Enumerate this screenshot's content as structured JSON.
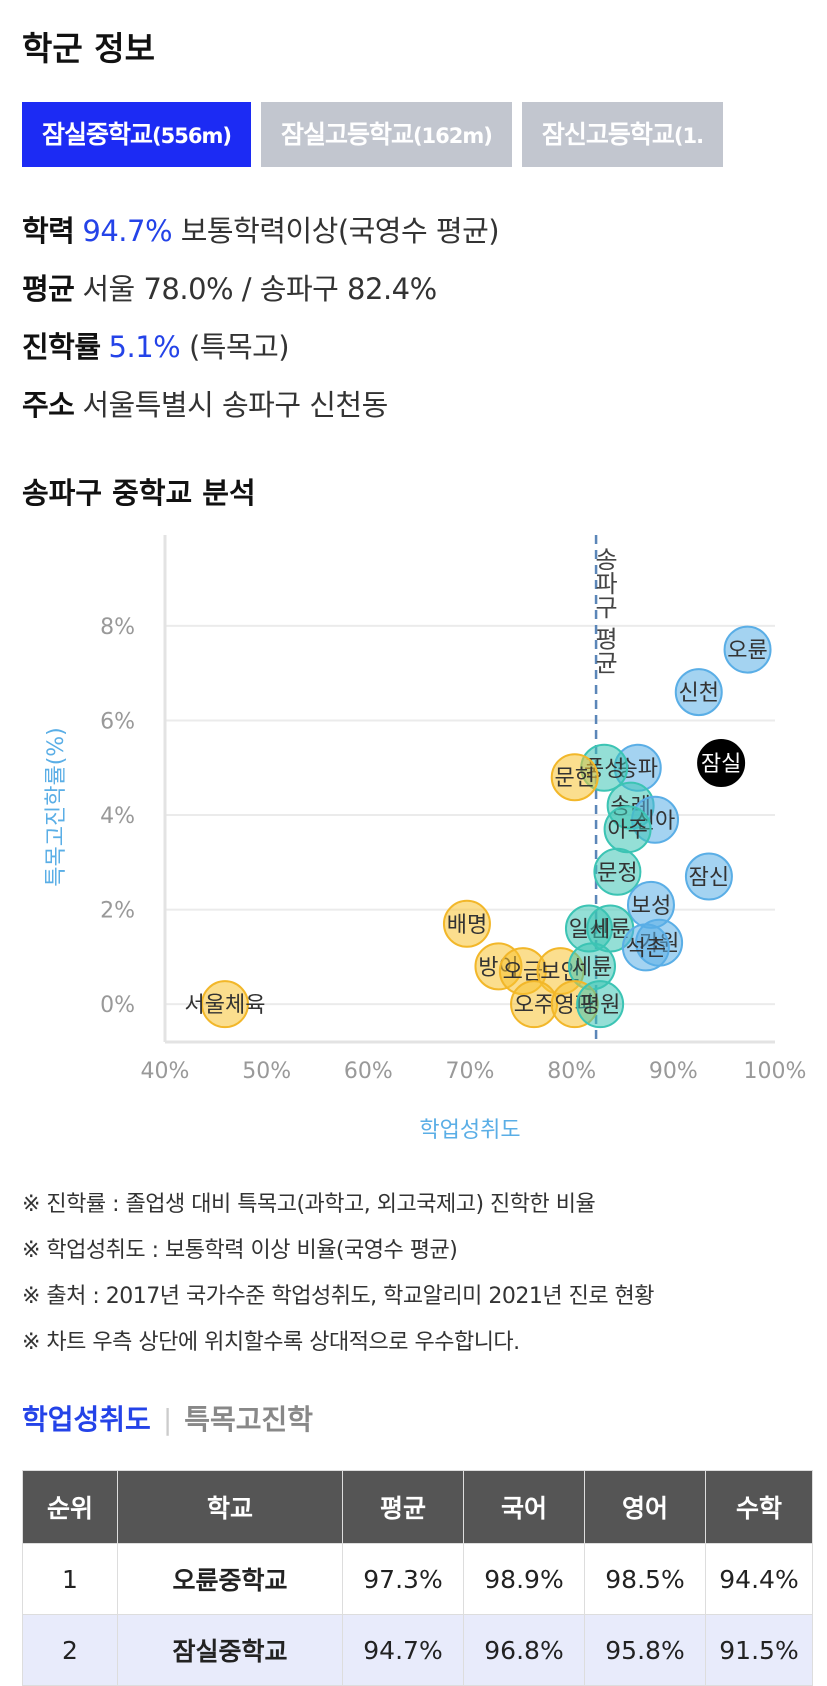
{
  "section1_title": "학군 정보",
  "tabs": [
    {
      "name": "잠실중학교",
      "dist": "(556m)",
      "active": true
    },
    {
      "name": "잠실고등학교",
      "dist": "(162m)",
      "active": false
    },
    {
      "name": "잠신고등학교",
      "dist": "(1.",
      "active": false
    }
  ],
  "info": {
    "academic_label": "학력",
    "academic_value": "94.7%",
    "academic_desc": "보통학력이상(국영수 평균)",
    "average_label": "평균",
    "average_value": "서울 78.0% / 송파구 82.4%",
    "rate_label": "진학률",
    "rate_value": "5.1%",
    "rate_desc": "(특목고)",
    "address_label": "주소",
    "address_value": "서울특별시 송파구 신천동"
  },
  "section2_title": "송파구 중학교 분석",
  "chart_data": {
    "type": "scatter",
    "xlabel": "학업성취도",
    "ylabel": "특목고진학률(%)",
    "x_ticks": [
      "40%",
      "50%",
      "60%",
      "70%",
      "80%",
      "90%",
      "100%"
    ],
    "y_ticks": [
      "0%",
      "2%",
      "4%",
      "6%",
      "8%"
    ],
    "xlim": [
      40,
      100
    ],
    "ylim": [
      -0.8,
      9.5
    ],
    "reference_line": {
      "x": 82.4,
      "label": "송파구 평균"
    },
    "colors": {
      "blue": "#5aaee6",
      "teal": "#3cc4b4",
      "yellow": "#f7c232",
      "highlight": "#000000"
    },
    "points": [
      {
        "label": "오륜",
        "x": 97.3,
        "y": 7.5,
        "color": "blue"
      },
      {
        "label": "신천",
        "x": 92.5,
        "y": 6.6,
        "color": "blue"
      },
      {
        "label": "잠실",
        "x": 94.7,
        "y": 5.1,
        "color": "highlight"
      },
      {
        "label": "송파",
        "x": 86.5,
        "y": 5.0,
        "color": "blue"
      },
      {
        "label": "풍성",
        "x": 83.2,
        "y": 5.0,
        "color": "teal"
      },
      {
        "label": "문현",
        "x": 80.3,
        "y": 4.8,
        "color": "yellow"
      },
      {
        "label": "송례",
        "x": 85.8,
        "y": 4.2,
        "color": "teal"
      },
      {
        "label": "신아",
        "x": 88.2,
        "y": 3.9,
        "color": "blue"
      },
      {
        "label": "아주",
        "x": 85.5,
        "y": 3.7,
        "color": "teal"
      },
      {
        "label": "문정",
        "x": 84.5,
        "y": 2.8,
        "color": "teal"
      },
      {
        "label": "잠신",
        "x": 93.5,
        "y": 2.7,
        "color": "blue"
      },
      {
        "label": "보성",
        "x": 87.8,
        "y": 2.1,
        "color": "blue"
      },
      {
        "label": "배명",
        "x": 69.7,
        "y": 1.7,
        "color": "yellow"
      },
      {
        "label": "일신",
        "x": 81.7,
        "y": 1.6,
        "color": "teal"
      },
      {
        "label": "세륜",
        "x": 83.8,
        "y": 1.6,
        "color": "teal"
      },
      {
        "label": "가원",
        "x": 88.6,
        "y": 1.3,
        "color": "blue"
      },
      {
        "label": "석촌",
        "x": 87.3,
        "y": 1.2,
        "color": "blue"
      },
      {
        "label": "방이",
        "x": 72.8,
        "y": 0.8,
        "color": "yellow"
      },
      {
        "label": "오금",
        "x": 75.2,
        "y": 0.7,
        "color": "yellow"
      },
      {
        "label": "보인",
        "x": 78.9,
        "y": 0.7,
        "color": "yellow"
      },
      {
        "label": "세륜",
        "x": 82.0,
        "y": 0.8,
        "color": "teal"
      },
      {
        "label": "오주",
        "x": 76.3,
        "y": 0.0,
        "color": "yellow"
      },
      {
        "label": "영파",
        "x": 80.3,
        "y": 0.0,
        "color": "yellow"
      },
      {
        "label": "평원",
        "x": 82.8,
        "y": 0.0,
        "color": "teal"
      },
      {
        "label": "서울체육",
        "x": 45.9,
        "y": 0.0,
        "color": "yellow"
      }
    ]
  },
  "notes": [
    "※ 진학률 : 졸업생 대비 특목고(과학고, 외고국제고) 진학한 비율",
    "※ 학업성취도 : 보통학력 이상 비율(국영수 평균)",
    "※ 출처 : 2017년 국가수준 학업성취도, 학교알리미 2021년 진로 현황",
    "※ 차트 우측 상단에 위치할수록 상대적으로 우수합니다."
  ],
  "subtabs": {
    "active": "학업성취도",
    "inactive": "특목고진학"
  },
  "table": {
    "headers": [
      "순위",
      "학교",
      "평균",
      "국어",
      "영어",
      "수학"
    ],
    "rows": [
      [
        "1",
        "오륜중학교",
        "97.3%",
        "98.9%",
        "98.5%",
        "94.4%"
      ],
      [
        "2",
        "잠실중학교",
        "94.7%",
        "96.8%",
        "95.8%",
        "91.5%"
      ]
    ]
  }
}
